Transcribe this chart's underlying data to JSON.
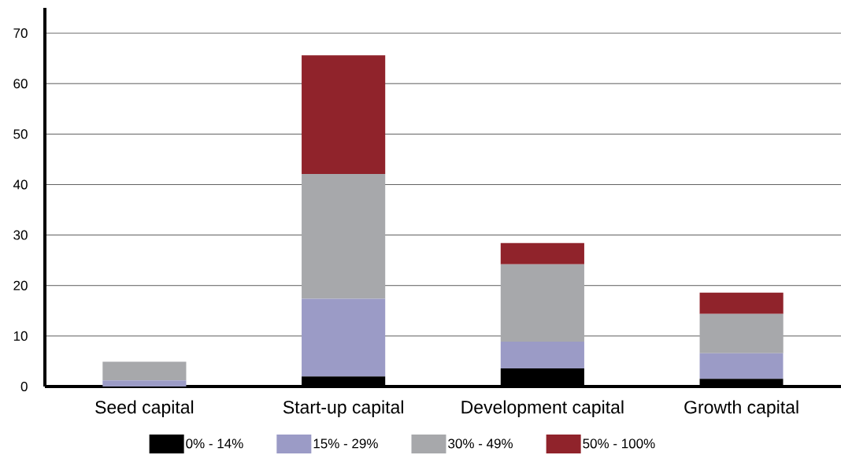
{
  "chart_data": {
    "type": "bar",
    "stacked": true,
    "categories": [
      "Seed capital",
      "Start-up capital",
      "Development capital",
      "Growth capital"
    ],
    "series": [
      {
        "name": "0% - 14%",
        "color": "#000000",
        "values": [
          0,
          2.0,
          3.6,
          1.5
        ]
      },
      {
        "name": "15% - 29%",
        "color": "#9b9bc6",
        "values": [
          1.2,
          15.4,
          5.3,
          5.1
        ]
      },
      {
        "name": "30% - 49%",
        "color": "#a7a8ab",
        "values": [
          3.7,
          24.7,
          15.3,
          7.8
        ]
      },
      {
        "name": "50% - 100%",
        "color": "#90232b",
        "values": [
          0,
          23.5,
          4.2,
          4.2
        ]
      }
    ],
    "ylim": [
      0,
      75
    ],
    "yticks": [
      0,
      10,
      20,
      30,
      40,
      50,
      60,
      70
    ],
    "grid": "y",
    "legend": "bottom"
  }
}
